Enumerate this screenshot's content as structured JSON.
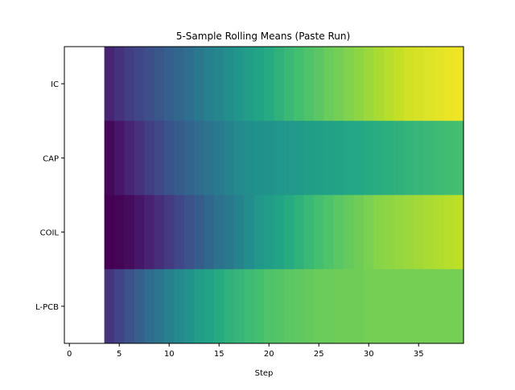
{
  "chart_data": {
    "type": "heatmap",
    "title": "5-Sample Rolling Means (Paste Run)",
    "xlabel": "Step",
    "ylabel": "",
    "rows": [
      "IC",
      "CAP",
      "COIL",
      "L-PCB"
    ],
    "x_start": 4,
    "x_end": 39,
    "xlim": [
      -0.5,
      39.5
    ],
    "xticks": [
      0,
      5,
      10,
      15,
      20,
      25,
      30,
      35
    ],
    "colormap": "viridis",
    "color_range": [
      0,
      1
    ],
    "grid": false,
    "values": [
      [
        0.1,
        0.14,
        0.18,
        0.21,
        0.24,
        0.27,
        0.3,
        0.33,
        0.36,
        0.4,
        0.43,
        0.46,
        0.49,
        0.52,
        0.55,
        0.58,
        0.61,
        0.64,
        0.67,
        0.7,
        0.72,
        0.74,
        0.77,
        0.79,
        0.81,
        0.83,
        0.85,
        0.87,
        0.89,
        0.91,
        0.93,
        0.94,
        0.95,
        0.96,
        0.97,
        0.98
      ],
      [
        0.02,
        0.06,
        0.1,
        0.14,
        0.18,
        0.22,
        0.26,
        0.29,
        0.32,
        0.35,
        0.38,
        0.41,
        0.44,
        0.47,
        0.49,
        0.5,
        0.51,
        0.52,
        0.53,
        0.54,
        0.55,
        0.56,
        0.57,
        0.58,
        0.59,
        0.6,
        0.61,
        0.62,
        0.63,
        0.64,
        0.65,
        0.66,
        0.67,
        0.68,
        0.69,
        0.7
      ],
      [
        0.0,
        0.01,
        0.03,
        0.06,
        0.09,
        0.13,
        0.17,
        0.21,
        0.25,
        0.29,
        0.33,
        0.37,
        0.4,
        0.44,
        0.48,
        0.52,
        0.55,
        0.58,
        0.61,
        0.64,
        0.67,
        0.7,
        0.72,
        0.74,
        0.76,
        0.78,
        0.8,
        0.82,
        0.83,
        0.84,
        0.85,
        0.86,
        0.87,
        0.88,
        0.89,
        0.9
      ],
      [
        0.15,
        0.2,
        0.25,
        0.3,
        0.35,
        0.39,
        0.43,
        0.47,
        0.51,
        0.55,
        0.58,
        0.61,
        0.64,
        0.66,
        0.68,
        0.7,
        0.72,
        0.73,
        0.74,
        0.75,
        0.76,
        0.77,
        0.77,
        0.78,
        0.78,
        0.78,
        0.79,
        0.79,
        0.79,
        0.79,
        0.79,
        0.79,
        0.79,
        0.79,
        0.79,
        0.79
      ]
    ]
  }
}
